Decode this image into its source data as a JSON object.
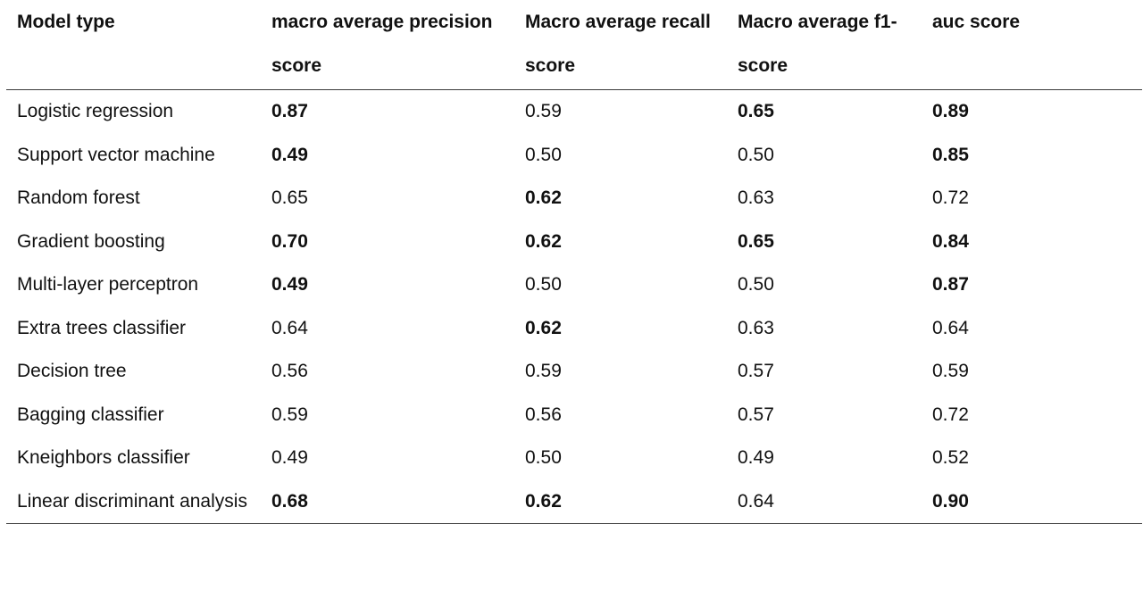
{
  "table": {
    "headers": [
      "Model type",
      "macro average precision score",
      "Macro average recall score",
      "Macro average f1-score",
      "auc score"
    ],
    "rows": [
      {
        "cells": [
          "Logistic regression",
          "0.87",
          "0.59",
          "0.65",
          "0.89"
        ],
        "bold": [
          false,
          true,
          false,
          true,
          true
        ]
      },
      {
        "cells": [
          "Support vector machine",
          "0.49",
          "0.50",
          "0.50",
          "0.85"
        ],
        "bold": [
          false,
          true,
          false,
          false,
          true
        ]
      },
      {
        "cells": [
          "Random forest",
          "0.65",
          "0.62",
          "0.63",
          "0.72"
        ],
        "bold": [
          false,
          false,
          true,
          false,
          false
        ]
      },
      {
        "cells": [
          "Gradient boosting",
          "0.70",
          "0.62",
          "0.65",
          "0.84"
        ],
        "bold": [
          false,
          true,
          true,
          true,
          true
        ]
      },
      {
        "cells": [
          "Multi-layer perceptron",
          "0.49",
          "0.50",
          "0.50",
          "0.87"
        ],
        "bold": [
          false,
          true,
          false,
          false,
          true
        ]
      },
      {
        "cells": [
          "Extra trees classifier",
          "0.64",
          "0.62",
          "0.63",
          "0.64"
        ],
        "bold": [
          false,
          false,
          true,
          false,
          false
        ]
      },
      {
        "cells": [
          "Decision tree",
          "0.56",
          "0.59",
          "0.57",
          "0.59"
        ],
        "bold": [
          false,
          false,
          false,
          false,
          false
        ]
      },
      {
        "cells": [
          "Bagging classifier",
          "0.59",
          "0.56",
          "0.57",
          "0.72"
        ],
        "bold": [
          false,
          false,
          false,
          false,
          false
        ]
      },
      {
        "cells": [
          "Kneighbors classifier",
          "0.49",
          "0.50",
          "0.49",
          "0.52"
        ],
        "bold": [
          false,
          false,
          false,
          false,
          false
        ]
      },
      {
        "cells": [
          "Linear discriminant analysis",
          "0.68",
          "0.62",
          "0.64",
          "0.90"
        ],
        "bold": [
          false,
          true,
          true,
          false,
          true
        ]
      }
    ]
  }
}
